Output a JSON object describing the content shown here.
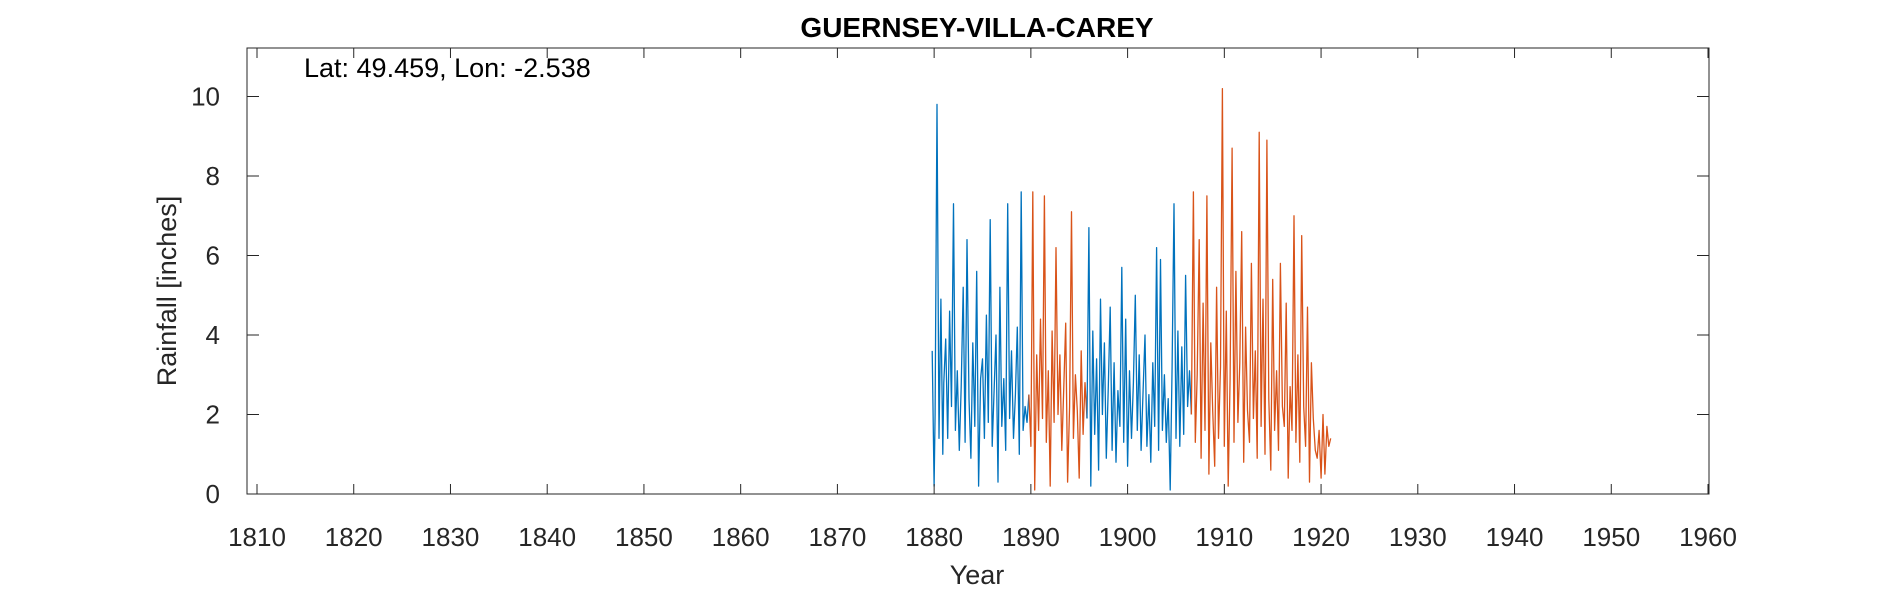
{
  "chart_data": {
    "type": "line",
    "title": "GUERNSEY-VILLA-CAREY",
    "annotation": "Lat: 49.459, Lon: -2.538",
    "xlabel": "Year",
    "ylabel": "Rainfall [inches]",
    "xlim": [
      1809,
      1962
    ],
    "ylim": [
      0,
      10.0
    ],
    "xticks": [
      1810,
      1820,
      1830,
      1840,
      1850,
      1860,
      1870,
      1880,
      1890,
      1900,
      1910,
      1920,
      1930,
      1940,
      1950,
      1960
    ],
    "yticks": [
      0,
      2,
      4,
      6,
      8,
      10
    ],
    "grid": false,
    "series_colors": [
      "#0072BD",
      "#D95319"
    ],
    "series": [
      {
        "x": [
          1879.8,
          1880.0,
          1880.1,
          1880.3,
          1880.5,
          1880.7,
          1880.9,
          1881.0,
          1881.2,
          1881.4,
          1881.6,
          1881.8,
          1882.0,
          1882.2,
          1882.4,
          1882.6,
          1882.8,
          1883.0,
          1883.2,
          1883.4,
          1883.6,
          1883.8,
          1884.0,
          1884.2,
          1884.4,
          1884.6,
          1884.8,
          1885.0,
          1885.2,
          1885.4,
          1885.6,
          1885.8,
          1886.0,
          1886.2,
          1886.4,
          1886.6,
          1886.8,
          1887.0,
          1887.2,
          1887.4,
          1887.6,
          1887.8,
          1888.0,
          1888.2,
          1888.4,
          1888.6,
          1888.8,
          1889.0,
          1889.2,
          1889.4,
          1889.6,
          1889.8
        ],
        "y": [
          3.6,
          0.2,
          2.0,
          9.8,
          1.4,
          4.9,
          1.0,
          2.8,
          3.9,
          1.4,
          4.6,
          2.2,
          7.3,
          1.6,
          3.1,
          1.1,
          2.7,
          5.2,
          1.3,
          6.4,
          2.4,
          0.9,
          3.8,
          1.7,
          5.6,
          0.2,
          2.9,
          3.4,
          1.4,
          4.5,
          1.8,
          6.9,
          1.2,
          2.6,
          4.0,
          0.3,
          5.2,
          1.7,
          2.9,
          1.1,
          7.3,
          1.9,
          3.6,
          1.4,
          2.5,
          4.2,
          1.0,
          7.6,
          1.6,
          2.2,
          1.8,
          2.5
        ]
      },
      {
        "x": [
          1889.8,
          1890.0,
          1890.2,
          1890.4,
          1890.6,
          1890.8,
          1891.0,
          1891.2,
          1891.4,
          1891.6,
          1891.8,
          1892.0,
          1892.2,
          1892.4,
          1892.6,
          1892.8,
          1893.0,
          1893.2,
          1893.4,
          1893.6,
          1893.8,
          1894.0,
          1894.2,
          1894.4,
          1894.6,
          1894.8,
          1895.0,
          1895.2,
          1895.4,
          1895.6,
          1895.8
        ],
        "y": [
          2.5,
          1.2,
          7.6,
          0.1,
          3.5,
          1.6,
          4.4,
          1.9,
          7.5,
          1.3,
          3.1,
          0.2,
          4.1,
          1.8,
          6.2,
          2.0,
          3.5,
          1.1,
          2.7,
          4.3,
          0.3,
          2.2,
          7.1,
          1.4,
          3.0,
          2.1,
          0.4,
          3.6,
          1.5,
          2.8,
          1.9
        ]
      },
      {
        "x": [
          1895.8,
          1896.0,
          1896.2,
          1896.4,
          1896.6,
          1896.8,
          1897.0,
          1897.2,
          1897.4,
          1897.6,
          1897.8,
          1898.0,
          1898.2,
          1898.4,
          1898.6,
          1898.8,
          1899.0,
          1899.2,
          1899.4,
          1899.6,
          1899.8,
          1900.0,
          1900.2,
          1900.4,
          1900.6,
          1900.8,
          1901.0,
          1901.2,
          1901.4,
          1901.6,
          1901.8,
          1902.0,
          1902.2,
          1902.4,
          1902.6,
          1902.8,
          1903.0,
          1903.2,
          1903.4,
          1903.6,
          1903.8,
          1904.0,
          1904.2,
          1904.4,
          1904.6,
          1904.8,
          1905.0,
          1905.2,
          1905.4,
          1905.6,
          1905.8,
          1906.0,
          1906.2,
          1906.4,
          1906.6
        ],
        "y": [
          1.9,
          6.7,
          0.2,
          4.1,
          1.5,
          3.4,
          0.6,
          4.9,
          2.0,
          3.8,
          0.9,
          2.7,
          4.7,
          1.1,
          3.3,
          0.8,
          2.6,
          1.7,
          5.7,
          1.3,
          4.4,
          0.7,
          3.1,
          1.4,
          2.8,
          5.0,
          1.6,
          3.5,
          1.1,
          2.6,
          4.0,
          1.2,
          2.5,
          0.8,
          3.3,
          1.7,
          6.2,
          1.1,
          5.9,
          1.6,
          3.0,
          1.3,
          2.4,
          0.1,
          3.2,
          7.3,
          1.4,
          4.1,
          1.2,
          3.7,
          1.5,
          5.5,
          2.2,
          3.1,
          2.0
        ]
      },
      {
        "x": [
          1906.6,
          1906.8,
          1907.0,
          1907.2,
          1907.4,
          1907.6,
          1907.8,
          1908.0,
          1908.2,
          1908.4,
          1908.6,
          1908.8,
          1909.0,
          1909.2,
          1909.4,
          1909.6,
          1909.8,
          1910.0,
          1910.2,
          1910.4,
          1910.6,
          1910.8,
          1911.0,
          1911.2,
          1911.4,
          1911.6,
          1911.8,
          1912.0,
          1912.2,
          1912.4,
          1912.6,
          1912.8,
          1913.0,
          1913.2,
          1913.4,
          1913.6,
          1913.8,
          1914.0,
          1914.2,
          1914.4,
          1914.6,
          1914.8,
          1915.0,
          1915.2,
          1915.4,
          1915.6,
          1915.8,
          1916.0,
          1916.2,
          1916.4,
          1916.6,
          1916.8,
          1917.0,
          1917.2,
          1917.4,
          1917.6,
          1917.8,
          1918.0,
          1918.2,
          1918.4,
          1918.6,
          1918.8,
          1919.0,
          1919.2,
          1919.4,
          1919.6,
          1919.8,
          1920.0,
          1920.2,
          1920.4,
          1920.6,
          1920.8,
          1921.0
        ],
        "y": [
          2.0,
          7.6,
          1.3,
          3.0,
          6.4,
          0.9,
          4.8,
          1.6,
          7.5,
          0.5,
          3.8,
          2.1,
          0.7,
          5.2,
          1.4,
          3.2,
          10.2,
          1.2,
          4.6,
          0.2,
          2.9,
          8.7,
          1.3,
          5.6,
          1.8,
          3.3,
          6.6,
          0.8,
          4.2,
          2.1,
          1.3,
          5.8,
          1.9,
          3.6,
          0.9,
          9.1,
          1.7,
          4.9,
          1.0,
          8.9,
          2.4,
          0.6,
          5.4,
          1.6,
          3.1,
          1.1,
          5.8,
          2.2,
          1.7,
          4.8,
          0.4,
          2.7,
          1.6,
          7.0,
          1.3,
          3.5,
          0.8,
          6.5,
          2.2,
          1.2,
          4.7,
          0.3,
          3.3,
          1.9,
          1.1,
          0.9,
          1.6,
          0.4,
          2.0,
          0.5,
          1.7,
          1.2,
          1.4
        ]
      }
    ]
  }
}
